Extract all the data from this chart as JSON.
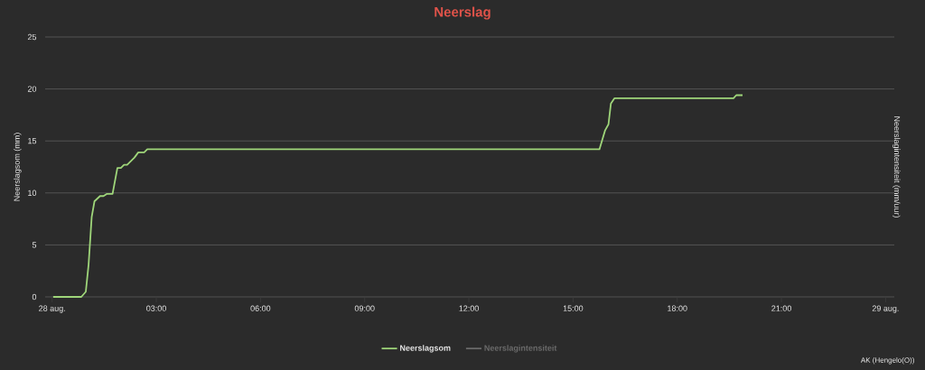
{
  "chart_data": {
    "type": "line",
    "title": "Neerslag",
    "ylabel": "Neerslagsom (mm)",
    "y2label": "Neerslagintensiteit (mm/uur)",
    "x": [
      0.03,
      0.84,
      0.97,
      1.05,
      1.14,
      1.22,
      1.38,
      1.48,
      1.57,
      1.74,
      1.79,
      1.88,
      1.98,
      2.07,
      2.16,
      2.37,
      2.48,
      2.65,
      2.74,
      15.76,
      15.92,
      16.02,
      16.09,
      16.19,
      19.62,
      19.7,
      19.88
    ],
    "series": [
      {
        "name": "Neerslagsom",
        "color": "#9fd67a",
        "values": [
          0,
          0,
          0.5,
          3.1,
          7.7,
          9.2,
          9.7,
          9.7,
          9.9,
          9.9,
          10.8,
          12.4,
          12.4,
          12.7,
          12.7,
          13.4,
          13.9,
          13.9,
          14.2,
          14.2,
          16.0,
          16.6,
          18.6,
          19.1,
          19.1,
          19.4,
          19.4
        ]
      },
      {
        "name": "Neerslagintensiteit",
        "color": "#6a6a6a",
        "values": [
          null,
          null,
          null,
          null,
          null,
          null,
          null,
          null,
          null,
          null,
          null,
          null,
          null,
          null,
          null,
          null,
          null,
          null,
          null,
          null,
          null,
          null,
          null,
          null,
          null,
          null,
          null
        ]
      }
    ],
    "xlim": [
      -0.2,
      24.25
    ],
    "ylim": [
      0,
      25
    ],
    "xticks": [
      {
        "value": 0,
        "label": "28 aug."
      },
      {
        "value": 3,
        "label": "03:00"
      },
      {
        "value": 6,
        "label": "06:00"
      },
      {
        "value": 9,
        "label": "09:00"
      },
      {
        "value": 12,
        "label": "12:00"
      },
      {
        "value": 15,
        "label": "15:00"
      },
      {
        "value": 18,
        "label": "18:00"
      },
      {
        "value": 21,
        "label": "21:00"
      },
      {
        "value": 24,
        "label": "29 aug."
      }
    ],
    "yticks": [
      0,
      5,
      10,
      15,
      20,
      25
    ],
    "grid": "y",
    "legend": "bottom",
    "marker": "none",
    "line_style": "solid",
    "annotations": [
      "AK (Hengelo(O))"
    ]
  }
}
